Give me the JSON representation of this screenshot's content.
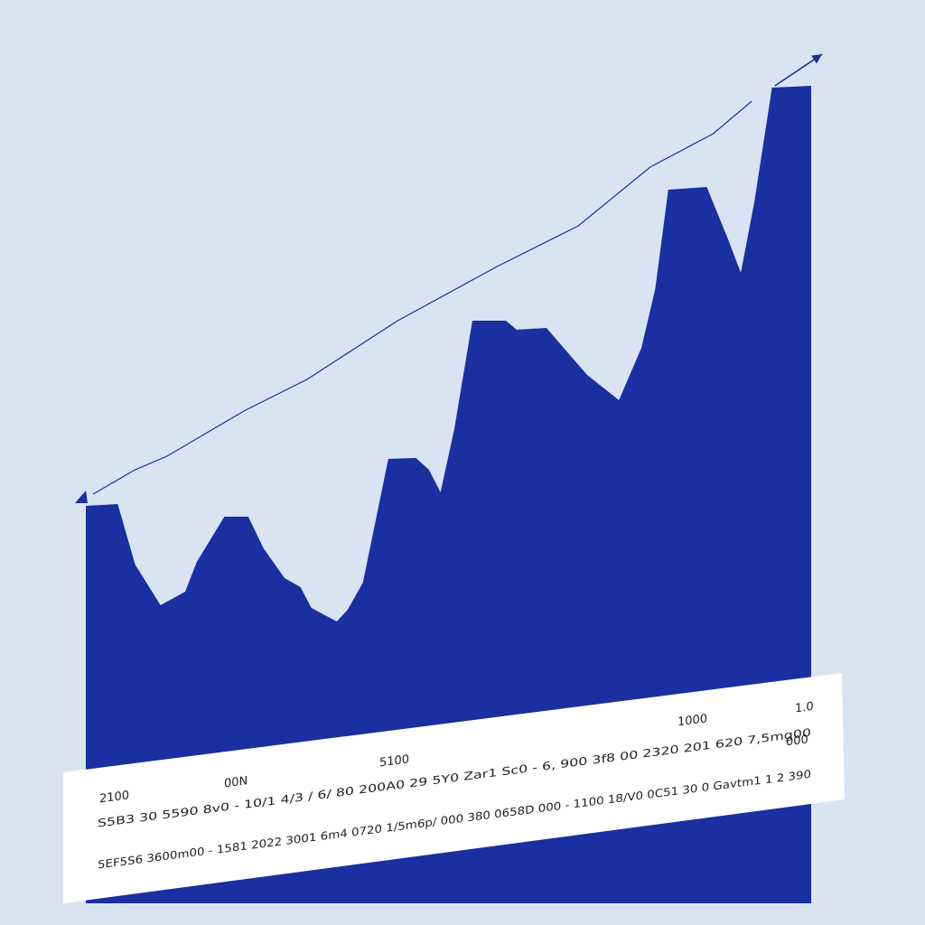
{
  "chart_data": {
    "type": "area",
    "color": "#1a2fa0",
    "xlim": [
      0,
      100
    ],
    "ylim": [
      0,
      100
    ],
    "series": [
      {
        "x": [
          0,
          4.4,
          6.8,
          10.3,
          13.7,
          15.3,
          19.1,
          22.4,
          24.5,
          27.4,
          29.6,
          31.1,
          34.6,
          36.1,
          38.2,
          41.7,
          45.5,
          47.3,
          48.9,
          50.8,
          53.3,
          57.9,
          59.4,
          63.5,
          69.1,
          73.5,
          76.6,
          78.5,
          80.3,
          85.6,
          88.4,
          90.3,
          92.2,
          94.6,
          100
        ],
        "values": [
          44,
          44.2,
          37.5,
          33,
          34.5,
          37.8,
          42.8,
          42.8,
          39.3,
          36,
          35,
          32.7,
          31.2,
          32.5,
          35.5,
          49.2,
          49.3,
          48,
          45.5,
          52.5,
          64.5,
          64.5,
          63.5,
          63.7,
          58.5,
          55.7,
          61.5,
          68,
          79,
          79.3,
          73.8,
          69.8,
          77.8,
          90.3,
          90.5
        ]
      },
      {
        "type": "line",
        "x": [
          1,
          6.8,
          11.2,
          21.8,
          30.5,
          43,
          56.7,
          67.9,
          77.8,
          86.5,
          91.8,
          null,
          95,
          101.5
        ],
        "values": [
          45.3,
          48,
          49.5,
          54.5,
          58,
          64.5,
          70.5,
          75,
          81.5,
          85.2,
          88.8,
          null,
          90.5,
          94
        ]
      }
    ],
    "annotations": [
      "2100",
      "00N",
      "5100",
      "1000",
      "1.0",
      "000"
    ],
    "table_rows": [
      "S5B3 30 5590 8v0  -  10/1 4/3 / 6/ 80 200A0 29 5Y0 Zar1 Sc0  -  6, 900 3f8 00 2320 201 620 7,5mg00",
      "5EF5S6 3600m00  -  1581 2022 3001 6m4 0720 1/5m6p/ 000 380 0658D 000  -  1100 18/V0 0C51 30 0 Gavtm1 1 2 390"
    ]
  }
}
